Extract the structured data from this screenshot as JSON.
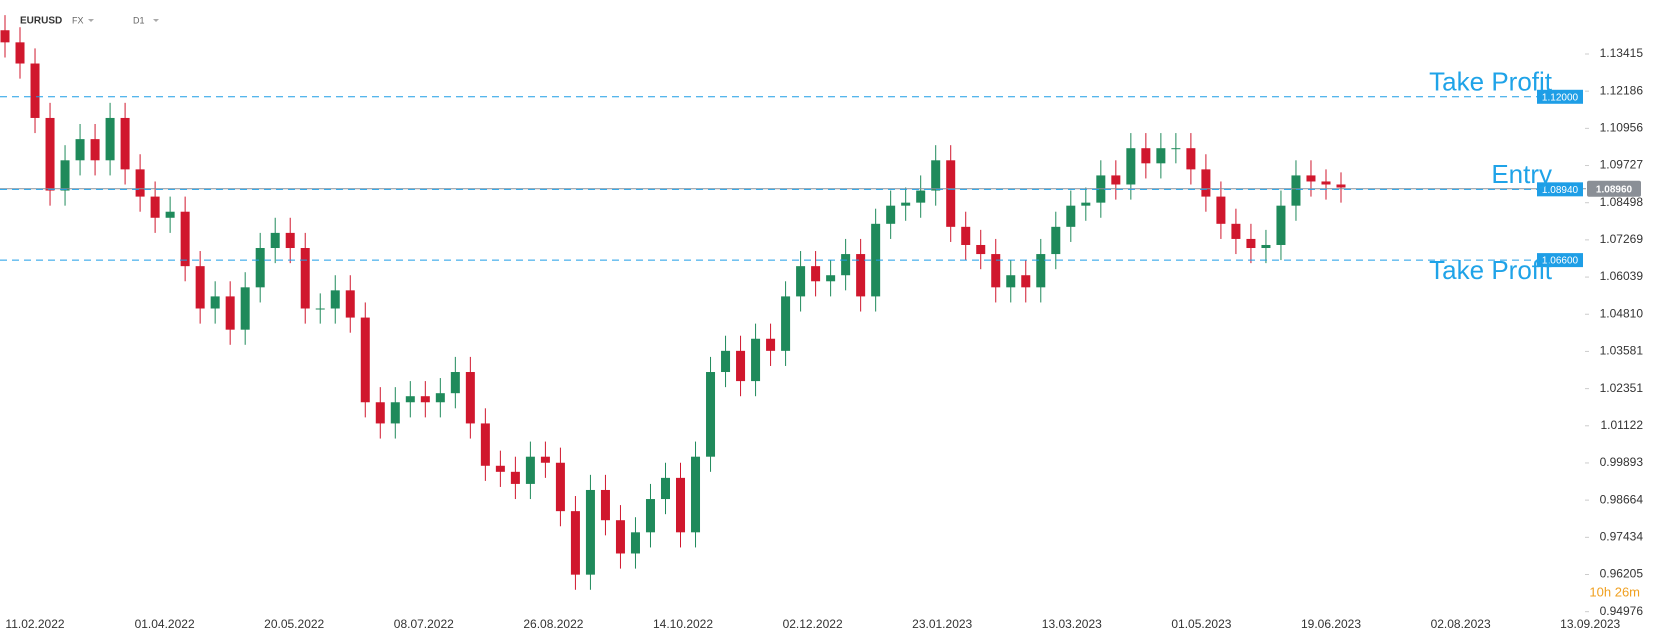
{
  "header": {
    "symbol": "EURUSD",
    "market": "FX",
    "timeframe": "D1"
  },
  "chart_data": {
    "type": "candlestick",
    "up_color": "#1f8a5b",
    "down_color": "#d0172d",
    "level_color": "#1e9ee6",
    "ylim": [
      0.948,
      1.152
    ],
    "yticks": [
      1.13415,
      1.12186,
      1.10956,
      1.09727,
      1.08498,
      1.07269,
      1.06039,
      {
        "value": 1.0481,
        "label": "1.04810"
      },
      1.03581,
      1.02351,
      1.01122,
      0.99893,
      0.98664,
      0.97434,
      0.96205,
      0.94976
    ],
    "x_labels": [
      "11.02.2022",
      "01.04.2022",
      "20.05.2022",
      "08.07.2022",
      "26.08.2022",
      "14.10.2022",
      "02.12.2022",
      "23.01.2023",
      "13.03.2023",
      "01.05.2023",
      "19.06.2023",
      "02.08.2023",
      "13.09.2023"
    ],
    "candles": [
      [
        1.142,
        1.147,
        1.133,
        1.138
      ],
      [
        1.138,
        1.143,
        1.126,
        1.131
      ],
      [
        1.131,
        1.136,
        1.108,
        1.113
      ],
      [
        1.113,
        1.118,
        1.084,
        1.089
      ],
      [
        1.089,
        1.104,
        1.084,
        1.099
      ],
      [
        1.099,
        1.111,
        1.094,
        1.106
      ],
      [
        1.106,
        1.111,
        1.094,
        1.099
      ],
      [
        1.099,
        1.118,
        1.094,
        1.113
      ],
      [
        1.113,
        1.118,
        1.091,
        1.096
      ],
      [
        1.096,
        1.101,
        1.082,
        1.087
      ],
      [
        1.087,
        1.092,
        1.075,
        1.08
      ],
      [
        1.08,
        1.087,
        1.075,
        1.082
      ],
      [
        1.082,
        1.087,
        1.059,
        1.064
      ],
      [
        1.064,
        1.069,
        1.045,
        1.05
      ],
      [
        1.05,
        1.059,
        1.045,
        1.054
      ],
      [
        1.054,
        1.059,
        1.038,
        1.043
      ],
      [
        1.043,
        1.062,
        1.038,
        1.057
      ],
      [
        1.057,
        1.075,
        1.052,
        1.07
      ],
      [
        1.07,
        1.08,
        1.065,
        1.075
      ],
      [
        1.075,
        1.08,
        1.065,
        1.07
      ],
      [
        1.07,
        1.075,
        1.045,
        1.05
      ],
      [
        1.05,
        1.055,
        1.045,
        1.05
      ],
      [
        1.05,
        1.061,
        1.045,
        1.056
      ],
      [
        1.056,
        1.061,
        1.042,
        1.047
      ],
      [
        1.047,
        1.052,
        1.014,
        1.019
      ],
      [
        1.019,
        1.024,
        1.007,
        1.012
      ],
      [
        1.012,
        1.024,
        1.007,
        1.019
      ],
      [
        1.019,
        1.026,
        1.014,
        1.021
      ],
      [
        1.021,
        1.026,
        1.014,
        1.019
      ],
      [
        1.019,
        1.027,
        1.014,
        1.022
      ],
      [
        1.022,
        1.034,
        1.017,
        1.029
      ],
      [
        1.029,
        1.034,
        1.007,
        1.012
      ],
      [
        1.012,
        1.017,
        0.993,
        0.998
      ],
      [
        0.998,
        1.003,
        0.991,
        0.996
      ],
      [
        0.996,
        1.001,
        0.987,
        0.992
      ],
      [
        0.992,
        1.006,
        0.987,
        1.001
      ],
      [
        1.001,
        1.006,
        0.994,
        0.999
      ],
      [
        0.999,
        1.004,
        0.978,
        0.983
      ],
      [
        0.983,
        0.988,
        0.957,
        0.962
      ],
      [
        0.962,
        0.995,
        0.957,
        0.99
      ],
      [
        0.99,
        0.995,
        0.975,
        0.98
      ],
      [
        0.98,
        0.985,
        0.964,
        0.969
      ],
      [
        0.969,
        0.981,
        0.964,
        0.976
      ],
      [
        0.976,
        0.992,
        0.971,
        0.987
      ],
      [
        0.987,
        0.999,
        0.982,
        0.994
      ],
      [
        0.994,
        0.999,
        0.971,
        0.976
      ],
      [
        0.976,
        1.006,
        0.971,
        1.001
      ],
      [
        1.001,
        1.034,
        0.996,
        1.029
      ],
      [
        1.029,
        1.041,
        1.024,
        1.036
      ],
      [
        1.036,
        1.041,
        1.021,
        1.026
      ],
      [
        1.026,
        1.045,
        1.021,
        1.04
      ],
      [
        1.04,
        1.045,
        1.031,
        1.036
      ],
      [
        1.036,
        1.059,
        1.031,
        1.054
      ],
      [
        1.054,
        1.069,
        1.049,
        1.064
      ],
      [
        1.064,
        1.069,
        1.054,
        1.059
      ],
      [
        1.059,
        1.066,
        1.054,
        1.061
      ],
      [
        1.061,
        1.073,
        1.056,
        1.068
      ],
      [
        1.068,
        1.073,
        1.049,
        1.054
      ],
      [
        1.054,
        1.083,
        1.049,
        1.078
      ],
      [
        1.078,
        1.089,
        1.073,
        1.084
      ],
      [
        1.084,
        1.09,
        1.079,
        1.085
      ],
      [
        1.085,
        1.094,
        1.08,
        1.089
      ],
      [
        1.089,
        1.104,
        1.084,
        1.099
      ],
      [
        1.099,
        1.104,
        1.072,
        1.077
      ],
      [
        1.077,
        1.082,
        1.066,
        1.071
      ],
      [
        1.071,
        1.076,
        1.063,
        1.068
      ],
      [
        1.068,
        1.073,
        1.052,
        1.057
      ],
      [
        1.057,
        1.066,
        1.052,
        1.061
      ],
      [
        1.061,
        1.066,
        1.052,
        1.057
      ],
      [
        1.057,
        1.073,
        1.052,
        1.068
      ],
      [
        1.068,
        1.082,
        1.063,
        1.077
      ],
      [
        1.077,
        1.089,
        1.072,
        1.084
      ],
      [
        1.084,
        1.09,
        1.079,
        1.085
      ],
      [
        1.085,
        1.099,
        1.08,
        1.094
      ],
      [
        1.094,
        1.099,
        1.086,
        1.091
      ],
      [
        1.091,
        1.108,
        1.086,
        1.103
      ],
      [
        1.103,
        1.108,
        1.093,
        1.098
      ],
      [
        1.098,
        1.108,
        1.093,
        1.103
      ],
      [
        1.103,
        1.108,
        1.098,
        1.103
      ],
      [
        1.103,
        1.108,
        1.091,
        1.096
      ],
      [
        1.096,
        1.101,
        1.082,
        1.087
      ],
      [
        1.087,
        1.092,
        1.073,
        1.078
      ],
      [
        1.078,
        1.083,
        1.068,
        1.073
      ],
      [
        1.073,
        1.078,
        1.065,
        1.07
      ],
      [
        1.07,
        1.076,
        1.065,
        1.071
      ],
      [
        1.071,
        1.089,
        1.066,
        1.084
      ],
      [
        1.084,
        1.099,
        1.079,
        1.094
      ],
      [
        1.094,
        1.099,
        1.087,
        1.092
      ],
      [
        1.092,
        1.096,
        1.086,
        1.091
      ],
      [
        1.091,
        1.095,
        1.085,
        1.09
      ]
    ],
    "levels": [
      {
        "name": "Take Profit",
        "value": 1.12,
        "value_label": "1.12000"
      },
      {
        "name": "Entry",
        "value": 1.0894,
        "value_label": "1.08940"
      },
      {
        "name": "Take Profit",
        "value": 1.066,
        "value_label": "1.06600"
      }
    ],
    "last_price": {
      "value": 1.0896,
      "value_label": "1.08960"
    },
    "timer": "10h 26m"
  }
}
